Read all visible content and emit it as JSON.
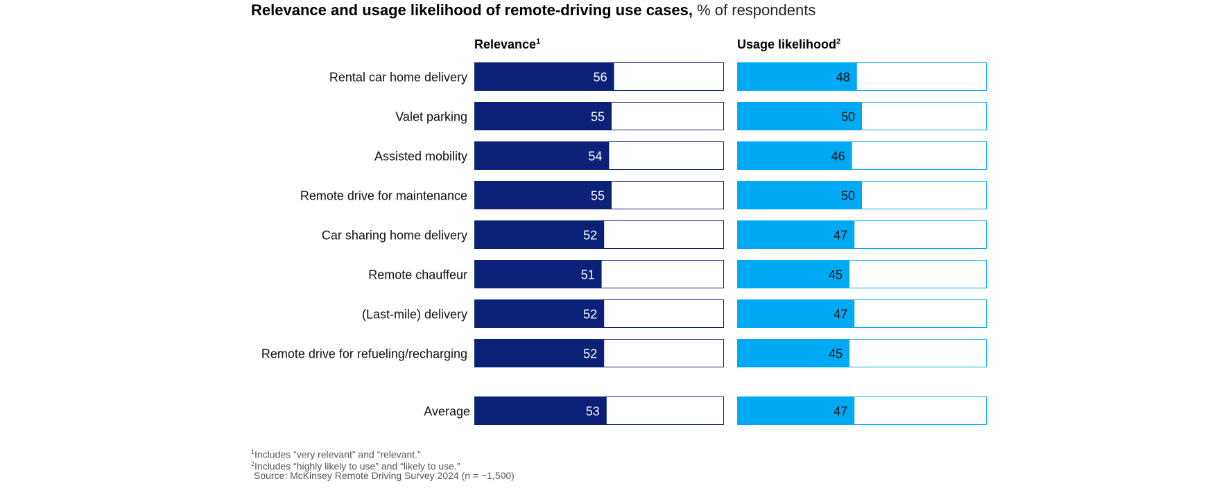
{
  "title_bold": "Relevance and usage likelihood of remote-driving use cases,",
  "title_light": " % of respondents",
  "colors": {
    "relevance": "#0b2178",
    "usage": "#00a9f4",
    "relevance_border": "#0b2178",
    "usage_border": "#00a9f4"
  },
  "headers": {
    "relevance": "Relevance",
    "relevance_note": "1",
    "usage": "Usage likelihood",
    "usage_note": "2"
  },
  "chart_data": {
    "type": "bar",
    "orientation": "horizontal",
    "xlim": [
      0,
      100
    ],
    "categories": [
      "Rental car home delivery",
      "Valet parking",
      "Assisted mobility",
      "Remote drive for maintenance",
      "Car sharing home delivery",
      "Remote chauffeur",
      "(Last-mile) delivery",
      "Remote drive for refueling/recharging"
    ],
    "series": [
      {
        "name": "Relevance",
        "values": [
          56,
          55,
          54,
          55,
          52,
          51,
          52,
          52
        ]
      },
      {
        "name": "Usage likelihood",
        "values": [
          48,
          50,
          46,
          50,
          47,
          45,
          47,
          45
        ]
      }
    ],
    "average": {
      "label": "Average",
      "values": [
        53,
        47
      ]
    }
  },
  "footnotes": {
    "note1_mark": "1",
    "note1": "Includes “very relevant” and “relevant.”",
    "note2_mark": "2",
    "note2": "Includes “highly likely to use” and “likely to use.”",
    "source": "Source: McKinsey Remote Driving Survey 2024 (n = ~1,500)"
  }
}
